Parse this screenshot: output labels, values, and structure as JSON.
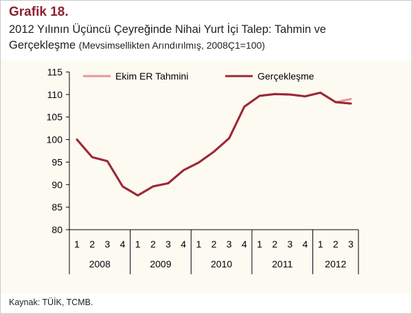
{
  "header": {
    "label": "Grafik 18.",
    "title_line1": "2012 Yılının Üçüncü Çeyreğinde Nihai Yurt İçi Talep: Tahmin ve",
    "title_line2_main": "Gerçekleşme",
    "title_line2_sub": "(Mevsimsellikten Arındırılmış, 2008Ç1=100)"
  },
  "source": "Kaynak: TÜİK, TCMB.",
  "colors": {
    "forecast": "#e8959c",
    "actual": "#9b2a34",
    "axis": "#000000",
    "plot_background": "#fdfaf2"
  },
  "chart_data": {
    "type": "line",
    "title": "",
    "xlabel": "",
    "ylabel": "",
    "ylim": [
      80,
      115
    ],
    "yticks": [
      80,
      85,
      90,
      95,
      100,
      105,
      110,
      115
    ],
    "grid": false,
    "legend_position": "top",
    "quarters": [
      "1",
      "2",
      "3",
      "4",
      "1",
      "2",
      "3",
      "4",
      "1",
      "2",
      "3",
      "4",
      "1",
      "2",
      "3",
      "4",
      "1",
      "2",
      "3"
    ],
    "years": [
      {
        "label": "2008",
        "count": 4
      },
      {
        "label": "2009",
        "count": 4
      },
      {
        "label": "2010",
        "count": 4
      },
      {
        "label": "2011",
        "count": 4
      },
      {
        "label": "2012",
        "count": 3
      }
    ],
    "series": [
      {
        "name": "Ekim ER Tahmini",
        "start_index": 17,
        "values": [
          108.3,
          109.0
        ]
      },
      {
        "name": "Gerçekleşme",
        "start_index": 0,
        "values": [
          100.0,
          96.1,
          95.2,
          89.6,
          87.6,
          89.6,
          90.3,
          93.2,
          94.9,
          97.3,
          100.3,
          107.3,
          109.7,
          110.1,
          110.0,
          109.6,
          110.4,
          108.3,
          108.0
        ]
      }
    ]
  }
}
